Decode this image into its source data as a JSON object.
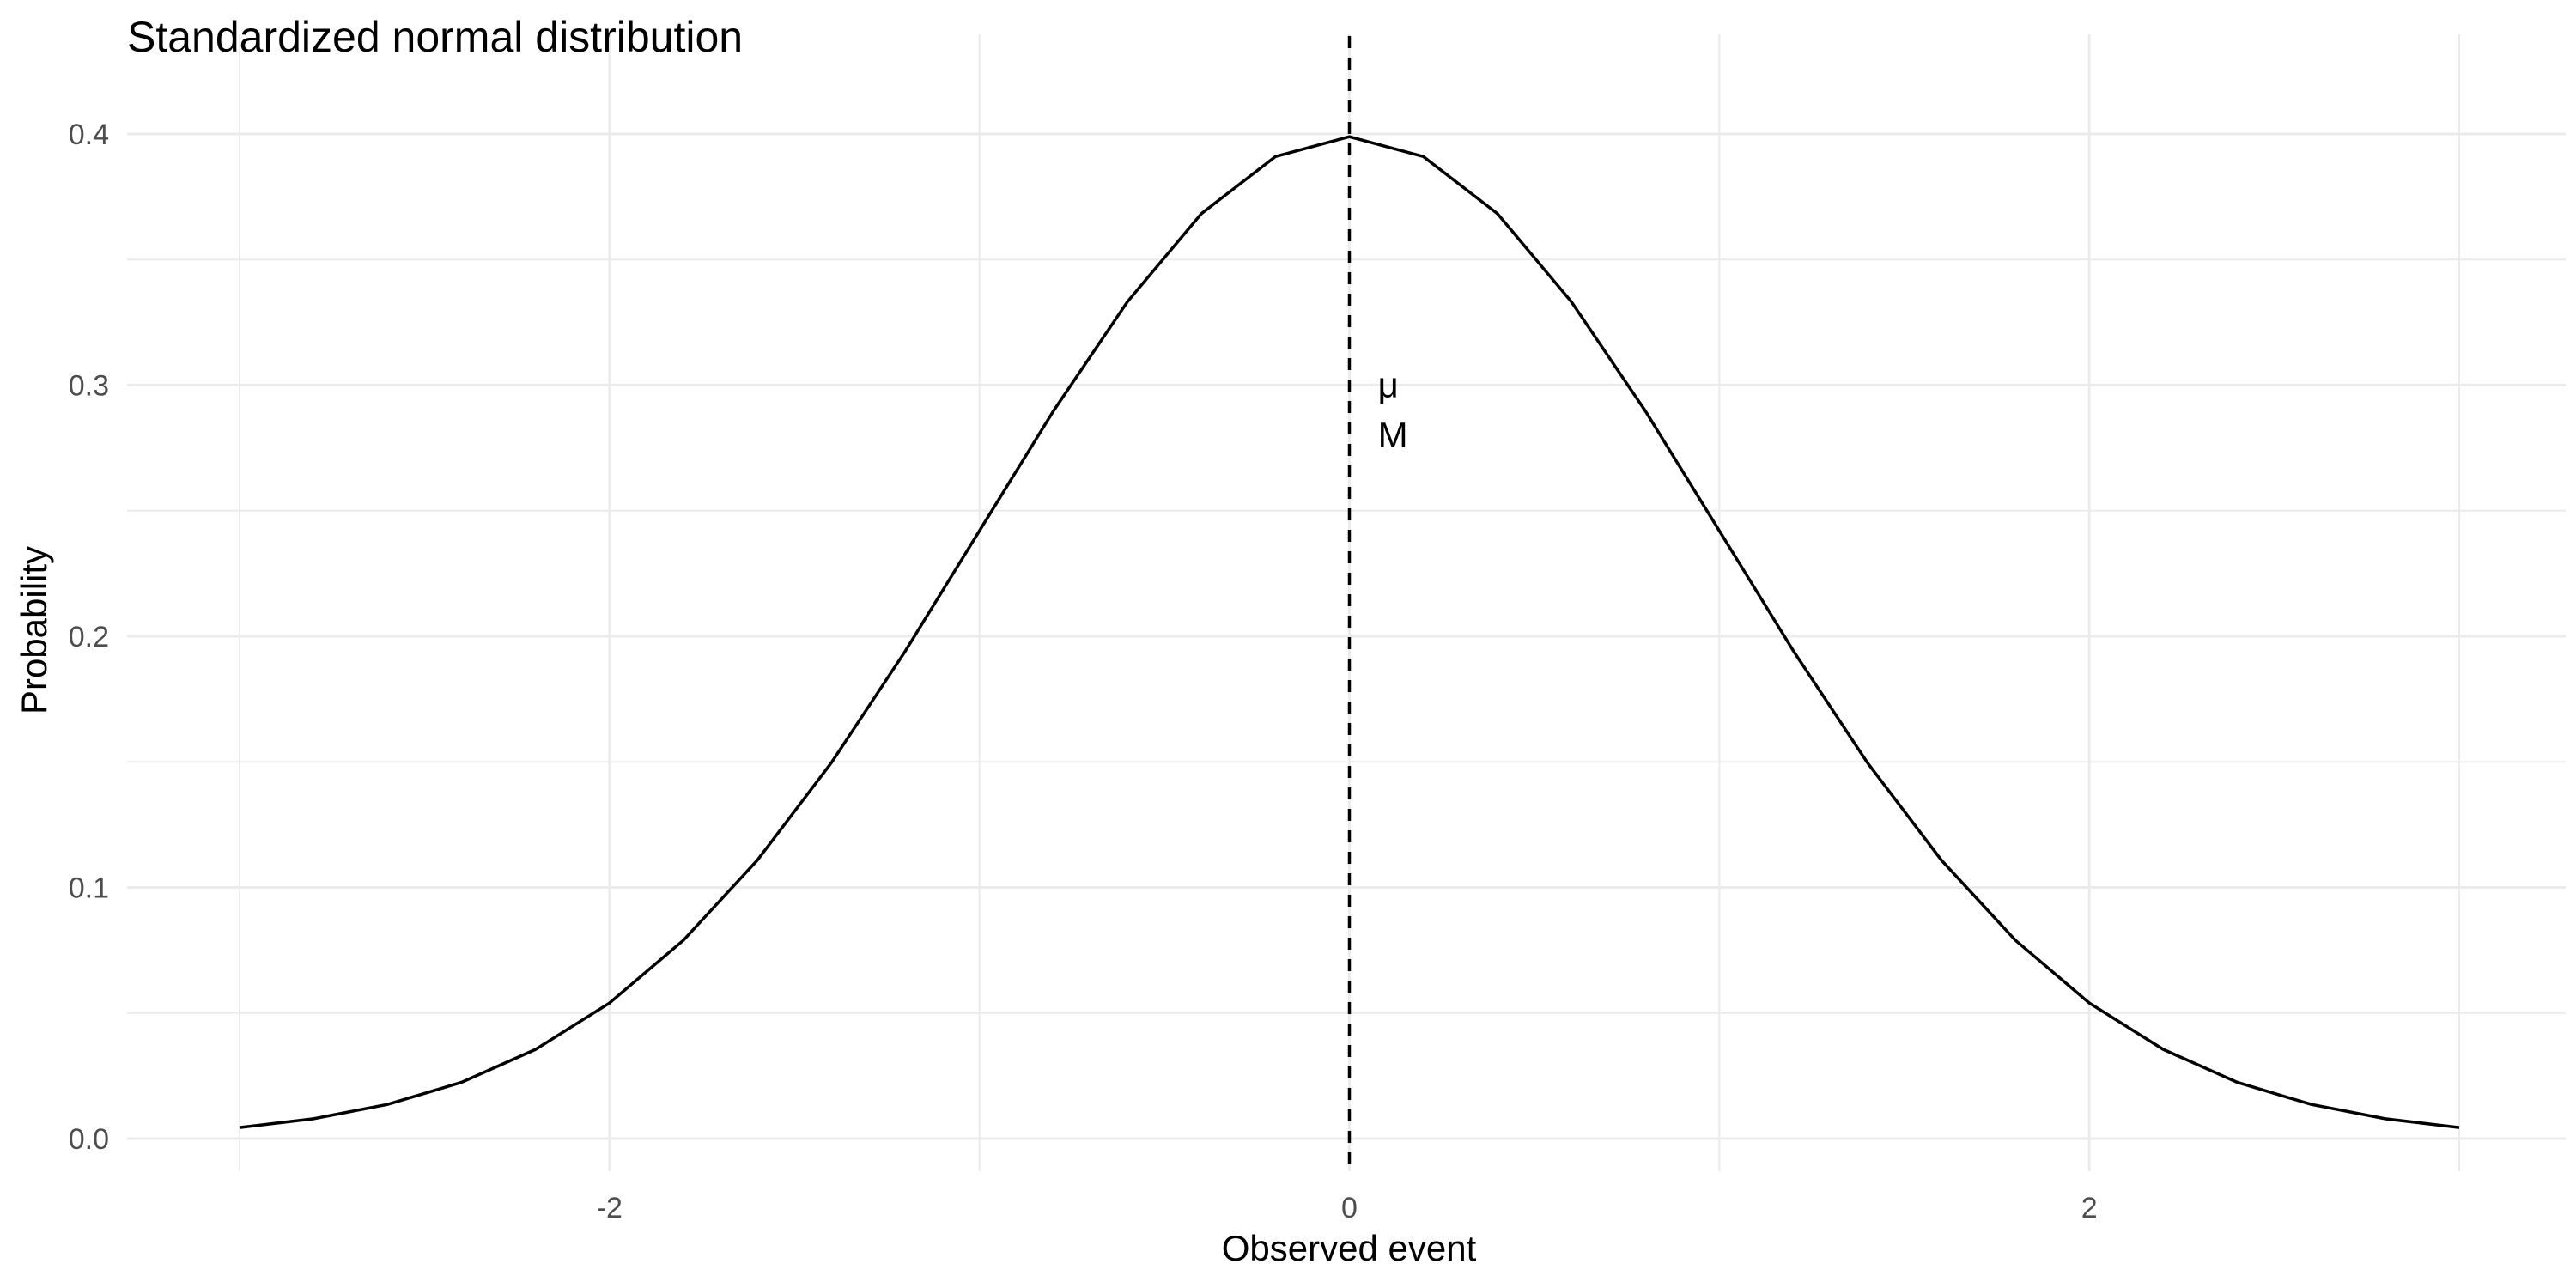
{
  "chart_data": {
    "type": "line",
    "title": "Standardized normal distribution",
    "xlabel": "Observed event",
    "ylabel": "Probability",
    "xlim": [
      -3.0,
      3.0
    ],
    "ylim": [
      0.0,
      0.4
    ],
    "x_ticks": [
      -2,
      0,
      2
    ],
    "x_tick_labels": [
      "-2",
      "0",
      "2"
    ],
    "x_minor_ticks": [
      -3,
      -1,
      1,
      3
    ],
    "y_ticks": [
      0.0,
      0.1,
      0.2,
      0.3,
      0.4
    ],
    "y_tick_labels": [
      "0.0",
      "0.1",
      "0.2",
      "0.3",
      "0.4"
    ],
    "y_minor_ticks": [
      0.05,
      0.15,
      0.25,
      0.35
    ],
    "grid": true,
    "legend": "none",
    "series": [
      {
        "x": [
          -3.0,
          -2.8,
          -2.6,
          -2.4,
          -2.2,
          -2.0,
          -1.8,
          -1.6,
          -1.4,
          -1.2,
          -1.0,
          -0.8,
          -0.6,
          -0.4,
          -0.2,
          0.0,
          0.2,
          0.4,
          0.6,
          0.8,
          1.0,
          1.2,
          1.4,
          1.6,
          1.8,
          2.0,
          2.2,
          2.4,
          2.6,
          2.8,
          3.0
        ],
        "y": [
          0.0044,
          0.0079,
          0.0136,
          0.0224,
          0.0355,
          0.054,
          0.079,
          0.1109,
          0.1497,
          0.1942,
          0.242,
          0.2897,
          0.3332,
          0.3683,
          0.391,
          0.3989,
          0.391,
          0.3683,
          0.3332,
          0.2897,
          0.242,
          0.1942,
          0.1497,
          0.1109,
          0.079,
          0.054,
          0.0355,
          0.0224,
          0.0136,
          0.0079,
          0.0044
        ],
        "color": "#000000",
        "line_style": "solid"
      }
    ],
    "reference_lines": [
      {
        "orientation": "vertical",
        "x": 0.0,
        "line_style": "dashed",
        "color": "#000000"
      }
    ],
    "annotations": [
      {
        "text": "μ",
        "x": 0.1,
        "y": 0.3
      },
      {
        "text": "M",
        "x": 0.1,
        "y": 0.28
      }
    ]
  }
}
